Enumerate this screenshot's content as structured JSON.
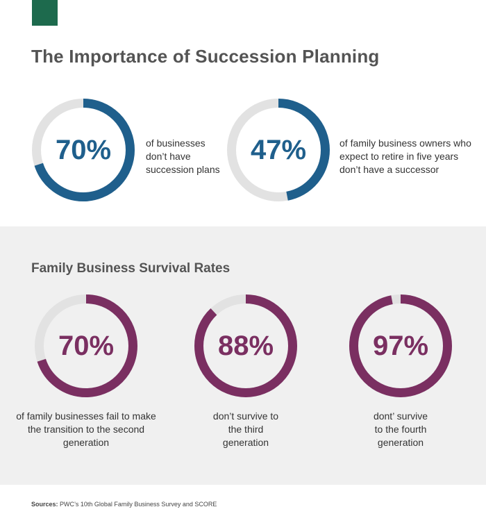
{
  "header": {
    "title": "The Importance of Succession Planning"
  },
  "colors": {
    "brand_green": "#1d6a4d",
    "blue": "#1f5f8c",
    "plum": "#7a2f61",
    "track": "#e2e2e2"
  },
  "chart_data": [
    {
      "type": "pie",
      "title": "",
      "values": [
        70
      ],
      "value_labels": [
        "70%"
      ],
      "description": "of businesses\ndon’t have\nsuccession plans"
    },
    {
      "type": "pie",
      "title": "",
      "values": [
        47
      ],
      "value_labels": [
        "47%"
      ],
      "description": "of family business owners who\nexpect to retire in five years\ndon’t have a successor"
    },
    {
      "type": "pie",
      "title": "Family Business Survival Rates",
      "values": [
        70
      ],
      "value_labels": [
        "70%"
      ],
      "description": "of family businesses fail to make\nthe transition to the second\ngeneration"
    },
    {
      "type": "pie",
      "title": "Family Business Survival Rates",
      "values": [
        88
      ],
      "value_labels": [
        "88%"
      ],
      "description": "don’t survive to\nthe third\ngeneration"
    },
    {
      "type": "pie",
      "title": "Family Business Survival Rates",
      "values": [
        97
      ],
      "value_labels": [
        "97%"
      ],
      "description": "dont’ survive\nto the fourth\ngeneration"
    }
  ],
  "survival": {
    "title": "Family Business Survival Rates"
  },
  "footer": {
    "sources_label": "Sources:",
    "sources_text": " PWC’s 10th Global Family Business Survey and SCORE"
  }
}
